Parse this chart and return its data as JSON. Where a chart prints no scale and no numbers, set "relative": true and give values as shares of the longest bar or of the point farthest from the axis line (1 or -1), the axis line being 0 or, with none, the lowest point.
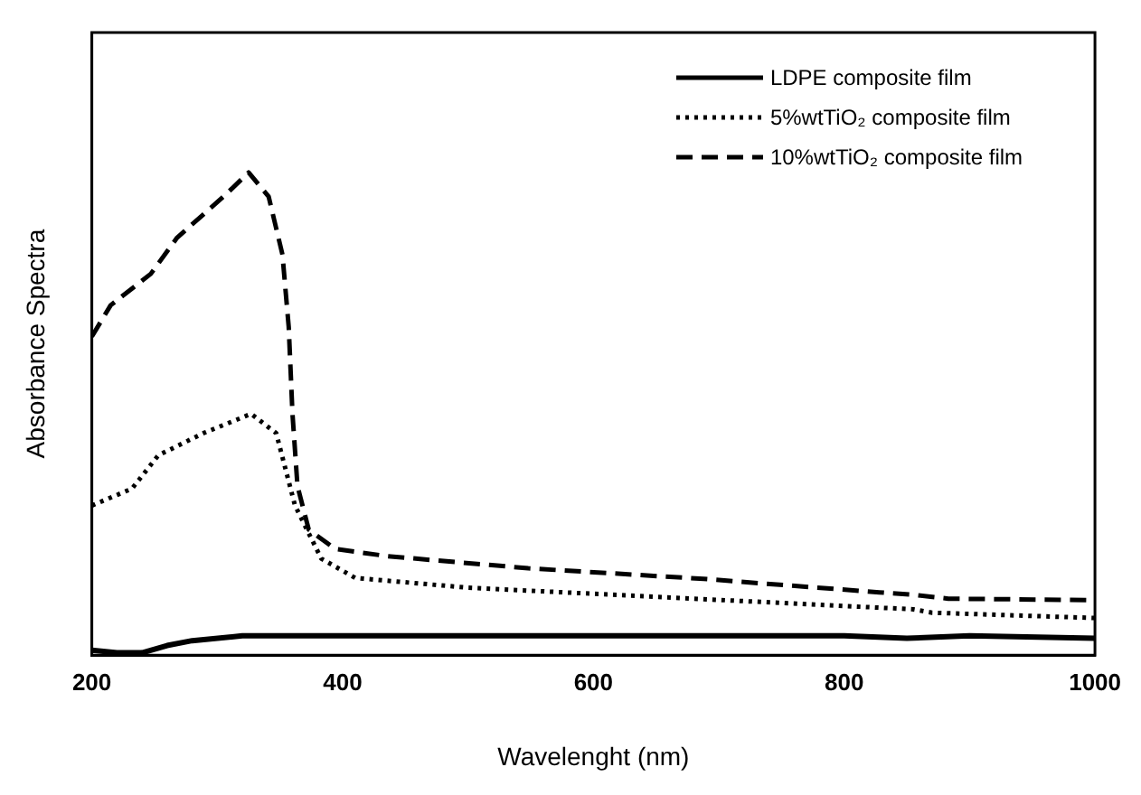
{
  "chart_data": {
    "type": "line",
    "xlabel": "Wavelenght (nm)",
    "ylabel": "Absorbance Spectra",
    "relative": true,
    "xlim": [
      200,
      1000
    ],
    "xticks": [
      200,
      400,
      600,
      800,
      1000
    ],
    "grid": false,
    "legend": "top right",
    "marker": "none",
    "series": [
      {
        "name": "LDPE composite film",
        "color": "#000000",
        "line_style": "solid",
        "x": [
          200,
          220,
          240,
          260,
          280,
          320,
          400,
          600,
          800,
          850,
          900,
          1000
        ],
        "values": [
          0.01,
          0.005,
          0.005,
          0.02,
          0.03,
          0.04,
          0.04,
          0.04,
          0.04,
          0.035,
          0.04,
          0.035
        ]
      },
      {
        "name": "5%wtTiO₂ composite film",
        "color": "#000000",
        "line_style": "dotted",
        "x": [
          200,
          232,
          253,
          289,
          327,
          347,
          362,
          383,
          410,
          499,
          656,
          855,
          870,
          1000
        ],
        "values": [
          0.31,
          0.345,
          0.414,
          0.46,
          0.5,
          0.46,
          0.31,
          0.2,
          0.16,
          0.14,
          0.12,
          0.095,
          0.088,
          0.077
        ]
      },
      {
        "name": "10%wtTiO₂ composite film",
        "color": "#000000",
        "line_style": "dashed",
        "x": [
          200,
          215,
          247,
          268,
          305,
          325,
          341,
          352,
          357,
          360,
          364,
          373,
          394,
          436,
          548,
          688,
          828,
          855,
          883,
          1000
        ],
        "values": [
          0.66,
          0.725,
          0.79,
          0.865,
          0.95,
          1.0,
          0.95,
          0.83,
          0.68,
          0.5,
          0.35,
          0.26,
          0.22,
          0.205,
          0.18,
          0.158,
          0.13,
          0.125,
          0.117,
          0.114
        ]
      }
    ]
  }
}
